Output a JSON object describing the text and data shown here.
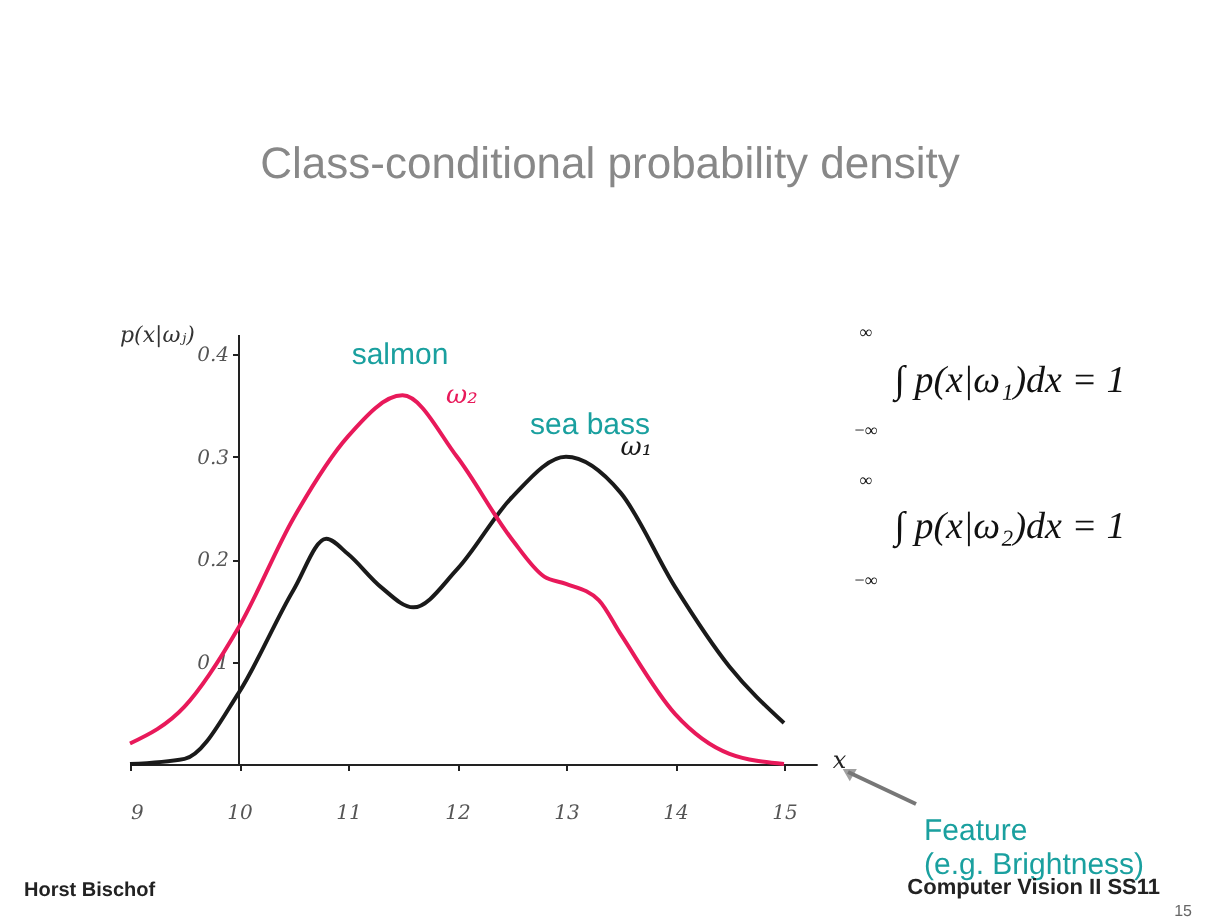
{
  "chart_data": {
    "type": "line",
    "title": "Class-conditional probability density",
    "xlabel": "x",
    "ylabel": "p(x|ωⱼ)",
    "x": [
      9,
      9.5,
      10,
      10.5,
      10.8,
      11,
      11.3,
      11.6,
      12,
      12.5,
      13,
      13.5,
      14,
      14.5,
      15
    ],
    "series": [
      {
        "name": "ω₁",
        "color": "#1a1a1a",
        "values": [
          0,
          0.005,
          0.07,
          0.17,
          0.22,
          0.205,
          0.173,
          0.153,
          0.19,
          0.26,
          0.3,
          0.265,
          0.173,
          0.095,
          0.04
        ]
      },
      {
        "name": "ω₂",
        "color": "#e8195a",
        "x": [
          9,
          9.5,
          10,
          10.5,
          11,
          11.5,
          12,
          12.5,
          12.8,
          13,
          13.3,
          13.5,
          14,
          14.5,
          15
        ],
        "values": [
          0.02,
          0.056,
          0.134,
          0.24,
          0.32,
          0.36,
          0.3,
          0.22,
          0.183,
          0.176,
          0.16,
          0.127,
          0.049,
          0.01,
          0
        ]
      }
    ],
    "xlim": [
      9,
      15.3
    ],
    "ylim": [
      0,
      0.42
    ],
    "xticks": [
      9,
      10,
      11,
      12,
      13,
      14,
      15
    ],
    "yticks": [
      0.1,
      0.2,
      0.3,
      0.4
    ],
    "grid": false,
    "marker": "none",
    "line_style": "solid",
    "annotations": [
      "salmon",
      "sea bass",
      "∫ p(x|ω₁)dx = 1",
      "∞",
      "−∞",
      "∫ p(x|ω₂)dx = 1",
      "∞",
      "−∞",
      "Feature (e.g. Brightness)",
      "Horst Bischof",
      "Computer Vision II SS11",
      "15"
    ]
  }
}
